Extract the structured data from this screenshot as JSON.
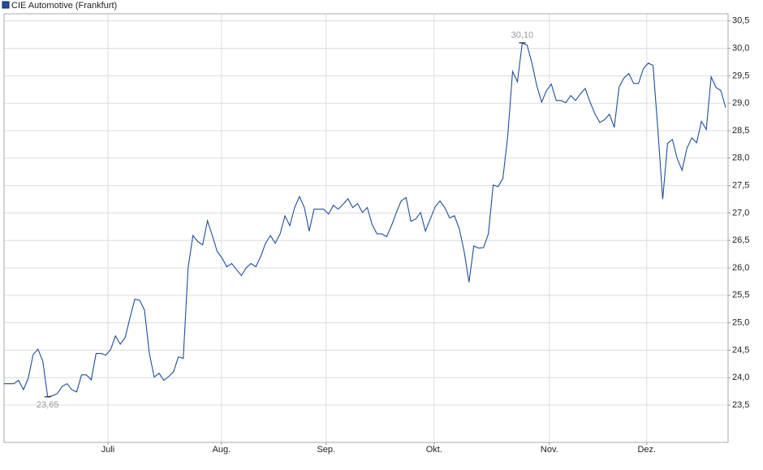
{
  "chart_data": {
    "type": "line",
    "series": [
      {
        "name": "CIE Automotive (Frankfurt)",
        "color": "#1f4e9c",
        "values": [
          23.89,
          23.89,
          23.89,
          23.95,
          23.78,
          23.99,
          24.42,
          24.52,
          24.3,
          23.65,
          23.67,
          23.71,
          23.84,
          23.89,
          23.78,
          23.74,
          24.05,
          24.05,
          23.96,
          24.44,
          24.44,
          24.41,
          24.51,
          24.76,
          24.61,
          24.73,
          25.09,
          25.43,
          25.41,
          25.23,
          24.44,
          24.01,
          24.08,
          23.95,
          24.02,
          24.11,
          24.38,
          24.35,
          26.0,
          26.59,
          26.48,
          26.42,
          26.86,
          26.59,
          26.3,
          26.18,
          26.02,
          26.08,
          25.97,
          25.86,
          26.0,
          26.08,
          26.02,
          26.21,
          26.45,
          26.59,
          26.45,
          26.62,
          26.95,
          26.77,
          27.1,
          27.3,
          27.1,
          26.67,
          27.07,
          27.07,
          27.07,
          26.98,
          27.14,
          27.07,
          27.16,
          27.26,
          27.1,
          27.17,
          27.01,
          27.1,
          26.79,
          26.62,
          26.62,
          26.57,
          26.77,
          27.01,
          27.22,
          27.28,
          26.85,
          26.89,
          27.01,
          26.67,
          26.89,
          27.11,
          27.22,
          27.1,
          26.91,
          26.95,
          26.71,
          26.3,
          25.74,
          26.4,
          26.36,
          26.37,
          26.62,
          27.51,
          27.48,
          27.63,
          28.4,
          29.58,
          29.39,
          30.1,
          30.06,
          29.73,
          29.32,
          29.02,
          29.23,
          29.35,
          29.05,
          29.05,
          29.01,
          29.14,
          29.05,
          29.17,
          29.27,
          29.02,
          28.81,
          28.65,
          28.7,
          28.8,
          28.56,
          29.3,
          29.46,
          29.54,
          29.36,
          29.36,
          29.63,
          29.73,
          29.69,
          28.52,
          27.25,
          28.27,
          28.34,
          27.99,
          27.78,
          28.18,
          28.37,
          28.28,
          28.67,
          28.52,
          29.48,
          29.29,
          29.23,
          28.92
        ]
      }
    ],
    "x": [
      0,
      1,
      2,
      3,
      4,
      5,
      6,
      7,
      8,
      9,
      10,
      11,
      12,
      13,
      14,
      15,
      16,
      17,
      18,
      19,
      20,
      21,
      22,
      23,
      24,
      25,
      26,
      27,
      28,
      29,
      30,
      31,
      32,
      33,
      34,
      35,
      36,
      37,
      38,
      39,
      40,
      41,
      42,
      43,
      44,
      45,
      46,
      47,
      48,
      49,
      50,
      51,
      52,
      53,
      54,
      55,
      56,
      57,
      58,
      59,
      60,
      61,
      62,
      63,
      64,
      65,
      66,
      67,
      68,
      69,
      70,
      71,
      72,
      73,
      74,
      75,
      76,
      77,
      78,
      79,
      80,
      81,
      82,
      83,
      84,
      85,
      86,
      87,
      88,
      89,
      90,
      91,
      92,
      93,
      94,
      95,
      96,
      97,
      98,
      99,
      100,
      101,
      102,
      103,
      104,
      105,
      106,
      107,
      108,
      109,
      110,
      111,
      112,
      113,
      114,
      115,
      116,
      117,
      118,
      119,
      120,
      121,
      122,
      123,
      124,
      125,
      126,
      127,
      128,
      129,
      130,
      131,
      132,
      133,
      134,
      135,
      136,
      137,
      138,
      139,
      140,
      141,
      142,
      143,
      144,
      145,
      146,
      147,
      148,
      149
    ],
    "xlim": [
      0,
      149.5
    ],
    "xticks": [
      {
        "value": 21.45,
        "label": "Juli"
      },
      {
        "value": 44.9,
        "label": "Aug."
      },
      {
        "value": 66.5,
        "label": "Sep."
      },
      {
        "value": 88.8,
        "label": "Okt."
      },
      {
        "value": 112.6,
        "label": "Nov."
      },
      {
        "value": 132.7,
        "label": "Dez."
      }
    ],
    "ylim": [
      22.82,
      30.63
    ],
    "yticks": [
      {
        "value": 23.5,
        "label": "23,5"
      },
      {
        "value": 24,
        "label": "24,0"
      },
      {
        "value": 24.5,
        "label": "24,5"
      },
      {
        "value": 25,
        "label": "25,0"
      },
      {
        "value": 25.5,
        "label": "25,5"
      },
      {
        "value": 26,
        "label": "26,0"
      },
      {
        "value": 26.5,
        "label": "26,5"
      },
      {
        "value": 27,
        "label": "27,0"
      },
      {
        "value": 27.5,
        "label": "27,5"
      },
      {
        "value": 28,
        "label": "28,0"
      },
      {
        "value": 28.5,
        "label": "28,5"
      },
      {
        "value": 29,
        "label": "29,0"
      },
      {
        "value": 29.5,
        "label": "29,5"
      },
      {
        "value": 30,
        "label": "30,0"
      },
      {
        "value": 30.5,
        "label": "30,5"
      }
    ],
    "annotations": [
      {
        "x": 107,
        "value": 30.1,
        "label": "30,10"
      },
      {
        "x": 9,
        "value": 23.65,
        "label": "23,65"
      }
    ],
    "grid": true,
    "legend": "top-left"
  }
}
